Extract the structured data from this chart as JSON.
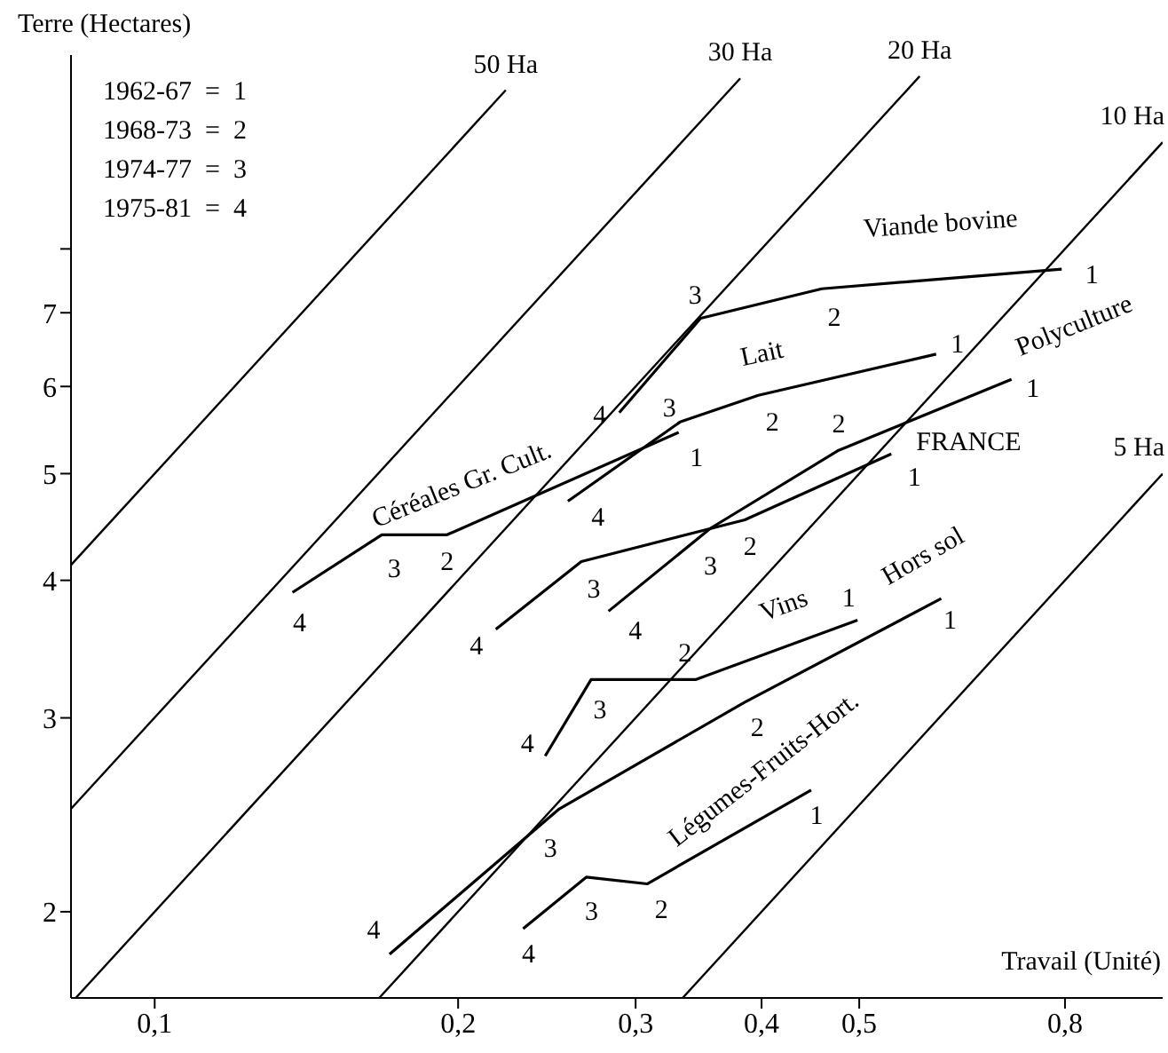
{
  "chart_data": {
    "type": "line",
    "xlabel": "Travail (Unité)",
    "ylabel": "Terre (Hectares)",
    "log": "xy",
    "legend": false,
    "marker": "none",
    "xlim": [
      0.0826,
      1.0
    ],
    "xticks": [
      {
        "value": 0.1,
        "label": "0,1"
      },
      {
        "value": 0.2,
        "label": "0,2"
      },
      {
        "value": 0.3,
        "label": "0,3"
      },
      {
        "value": 0.4,
        "label": "0,4"
      },
      {
        "value": 0.5,
        "label": "0,5"
      },
      {
        "value": 0.8,
        "label": "0,8"
      }
    ],
    "ylim": [
      1.67,
      12
    ],
    "yticks": [
      2,
      3,
      4,
      5,
      6,
      7,
      {
        "value": 8,
        "label": null
      }
    ],
    "annotations": [
      "1962-67  =  1",
      "1968-73  =  2",
      "1974-77  =  3",
      "1975-81  =  4",
      {
        "text": "1",
        "x": 0.794,
        "y": 7.67
      },
      {
        "text": "2",
        "x": 0.459,
        "y": 7.36
      },
      {
        "text": "3",
        "x": 0.348,
        "y": 6.92
      },
      {
        "text": "4",
        "x": 0.289,
        "y": 5.68
      },
      {
        "text": "1",
        "x": 0.596,
        "y": 6.42
      },
      {
        "text": "2",
        "x": 0.397,
        "y": 5.89
      },
      {
        "text": "3",
        "x": 0.332,
        "y": 5.57
      },
      {
        "text": "4",
        "x": 0.257,
        "y": 4.72
      },
      {
        "text": "1",
        "x": 0.331,
        "y": 5.45
      },
      {
        "text": "2",
        "x": 0.195,
        "y": 4.4
      },
      {
        "text": "3",
        "x": 0.168,
        "y": 4.4
      },
      {
        "text": "4",
        "x": 0.137,
        "y": 3.9
      },
      {
        "text": "1",
        "x": 0.538,
        "y": 5.21
      },
      {
        "text": "2",
        "x": 0.385,
        "y": 4.54
      },
      {
        "text": "3",
        "x": 0.265,
        "y": 4.16
      },
      {
        "text": "4",
        "x": 0.218,
        "y": 3.61
      },
      {
        "text": "1",
        "x": 0.708,
        "y": 6.09
      },
      {
        "text": "2",
        "x": 0.477,
        "y": 5.25
      },
      {
        "text": "3",
        "x": 0.356,
        "y": 4.46
      },
      {
        "text": "4",
        "x": 0.282,
        "y": 3.75
      },
      {
        "text": "1",
        "x": 0.498,
        "y": 3.68
      },
      {
        "text": "2",
        "x": 0.344,
        "y": 3.25
      },
      {
        "text": "3",
        "x": 0.271,
        "y": 3.25
      },
      {
        "text": "4",
        "x": 0.244,
        "y": 2.77
      },
      {
        "text": "1",
        "x": 0.603,
        "y": 3.85
      },
      {
        "text": "2",
        "x": 0.385,
        "y": 3.1
      },
      {
        "text": "3",
        "x": 0.252,
        "y": 2.48
      },
      {
        "text": "4",
        "x": 0.171,
        "y": 1.83
      },
      {
        "text": "1",
        "x": 0.448,
        "y": 2.58
      },
      {
        "text": "2",
        "x": 0.308,
        "y": 2.12
      },
      {
        "text": "3",
        "x": 0.268,
        "y": 2.15
      },
      {
        "text": "4",
        "x": 0.232,
        "y": 1.93
      }
    ],
    "series": [
      {
        "name": "Viande bovine",
        "color": "#000000",
        "x": [
          0.794,
          0.459,
          0.348,
          0.289
        ],
        "values": [
          7.67,
          7.36,
          6.92,
          5.68
        ]
      },
      {
        "name": "Lait",
        "color": "#000000",
        "x": [
          0.596,
          0.397,
          0.332,
          0.257
        ],
        "values": [
          6.42,
          5.89,
          5.57,
          4.72
        ]
      },
      {
        "name": "Céréales Gr. Cult.",
        "color": "#000000",
        "x": [
          0.331,
          0.195,
          0.168,
          0.137
        ],
        "values": [
          5.45,
          4.4,
          4.4,
          3.9
        ]
      },
      {
        "name": "FRANCE",
        "color": "#000000",
        "x": [
          0.538,
          0.385,
          0.265,
          0.218
        ],
        "values": [
          5.21,
          4.54,
          4.16,
          3.61
        ]
      },
      {
        "name": "Polyculture",
        "color": "#000000",
        "x": [
          0.708,
          0.477,
          0.356,
          0.282
        ],
        "values": [
          6.09,
          5.25,
          4.46,
          3.75
        ]
      },
      {
        "name": "Vins",
        "color": "#000000",
        "x": [
          0.498,
          0.344,
          0.271,
          0.244
        ],
        "values": [
          3.68,
          3.25,
          3.25,
          2.77
        ]
      },
      {
        "name": "Hors sol",
        "color": "#000000",
        "x": [
          0.603,
          0.385,
          0.252,
          0.171
        ],
        "values": [
          3.85,
          3.1,
          2.48,
          1.83
        ]
      },
      {
        "name": "Légumes-Fruits-Hort.",
        "color": "#000000",
        "x": [
          0.448,
          0.308,
          0.268,
          0.232
        ],
        "values": [
          2.58,
          2.12,
          2.15,
          1.93
        ]
      },
      {
        "name": "50 Ha",
        "color": "#000000",
        "x": [
          0.0826,
          0.223
        ],
        "values": [
          4.13,
          11.15
        ]
      },
      {
        "name": "30 Ha",
        "color": "#000000",
        "x": [
          0.0826,
          0.381
        ],
        "values": [
          2.48,
          11.43
        ]
      },
      {
        "name": "20 Ha",
        "color": "#000000",
        "x": [
          0.0835,
          0.574
        ],
        "values": [
          1.67,
          11.48
        ]
      },
      {
        "name": "10 Ha",
        "color": "#000000",
        "x": [
          0.167,
          1.0
        ],
        "values": [
          1.67,
          10
        ]
      },
      {
        "name": "5 Ha",
        "color": "#000000",
        "x": [
          0.334,
          1.0
        ],
        "values": [
          1.67,
          5
        ]
      }
    ]
  }
}
